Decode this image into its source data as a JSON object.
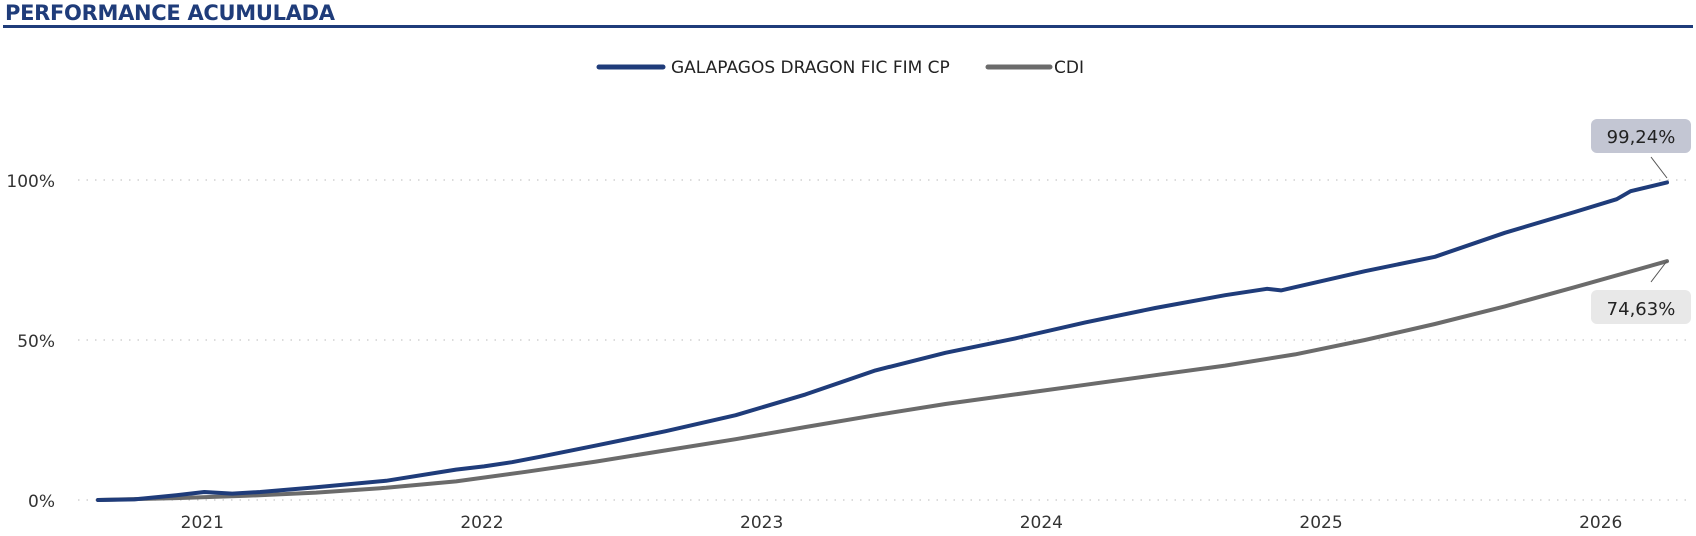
{
  "header": {
    "title": "PERFORMANCE ACUMULADA"
  },
  "colors": {
    "fund": "#1f3c7a",
    "cdi": "#6b6b6b",
    "fund_callout_bg": "#c3c6d3",
    "cdi_callout_bg": "#e8e8e8"
  },
  "legend": [
    {
      "label": "GALAPAGOS DRAGON FIC FIM CP",
      "color": "#1f3c7a"
    },
    {
      "label": "CDI",
      "color": "#6b6b6b"
    }
  ],
  "callouts": {
    "fund": "99,24%",
    "cdi": "74,63%"
  },
  "chart_data": {
    "type": "line",
    "x_unit": "year",
    "xlim": [
      2020.72,
      2026.33
    ],
    "ylim": [
      0,
      100
    ],
    "y_ticks": [
      {
        "value": 0,
        "label": "0%"
      },
      {
        "value": 50,
        "label": "50%"
      },
      {
        "value": 100,
        "label": "100%"
      }
    ],
    "x_ticks": [
      {
        "value": 2021,
        "label": "2021"
      },
      {
        "value": 2022,
        "label": "2022"
      },
      {
        "value": 2023,
        "label": "2023"
      },
      {
        "value": 2024,
        "label": "2024"
      },
      {
        "value": 2025,
        "label": "2025"
      },
      {
        "value": 2026,
        "label": "2026"
      }
    ],
    "grid": "horizontal-dotted",
    "legend_position": "top-center",
    "series": [
      {
        "name": "GALAPAGOS DRAGON FIC FIM CP",
        "x": [
          2020.72,
          2020.85,
          2021.0,
          2021.1,
          2021.2,
          2021.3,
          2021.5,
          2021.75,
          2022.0,
          2022.1,
          2022.2,
          2022.3,
          2022.5,
          2022.75,
          2023.0,
          2023.25,
          2023.5,
          2023.75,
          2024.0,
          2024.25,
          2024.5,
          2024.75,
          2024.9,
          2024.95,
          2025.0,
          2025.25,
          2025.5,
          2025.75,
          2026.0,
          2026.15,
          2026.2,
          2026.33
        ],
        "y": [
          0,
          0.2,
          1.5,
          2.5,
          2.0,
          2.5,
          4.0,
          6.0,
          9.5,
          10.5,
          11.8,
          13.5,
          17.0,
          21.5,
          26.5,
          33.0,
          40.5,
          46.0,
          50.5,
          55.5,
          60.0,
          64.0,
          66.0,
          65.5,
          66.5,
          71.5,
          76.0,
          83.5,
          90.0,
          94.0,
          96.5,
          99.24
        ]
      },
      {
        "name": "CDI",
        "x": [
          2020.72,
          2021.0,
          2021.25,
          2021.5,
          2021.75,
          2022.0,
          2022.25,
          2022.5,
          2022.75,
          2023.0,
          2023.25,
          2023.5,
          2023.75,
          2024.0,
          2024.25,
          2024.5,
          2024.75,
          2025.0,
          2025.25,
          2025.5,
          2025.75,
          2026.0,
          2026.33
        ],
        "y": [
          0,
          0.6,
          1.3,
          2.3,
          3.8,
          5.8,
          8.8,
          12.0,
          15.5,
          19.0,
          22.8,
          26.5,
          30.0,
          33.0,
          36.0,
          39.0,
          42.0,
          45.5,
          50.0,
          55.0,
          60.5,
          66.5,
          74.63
        ]
      }
    ]
  }
}
